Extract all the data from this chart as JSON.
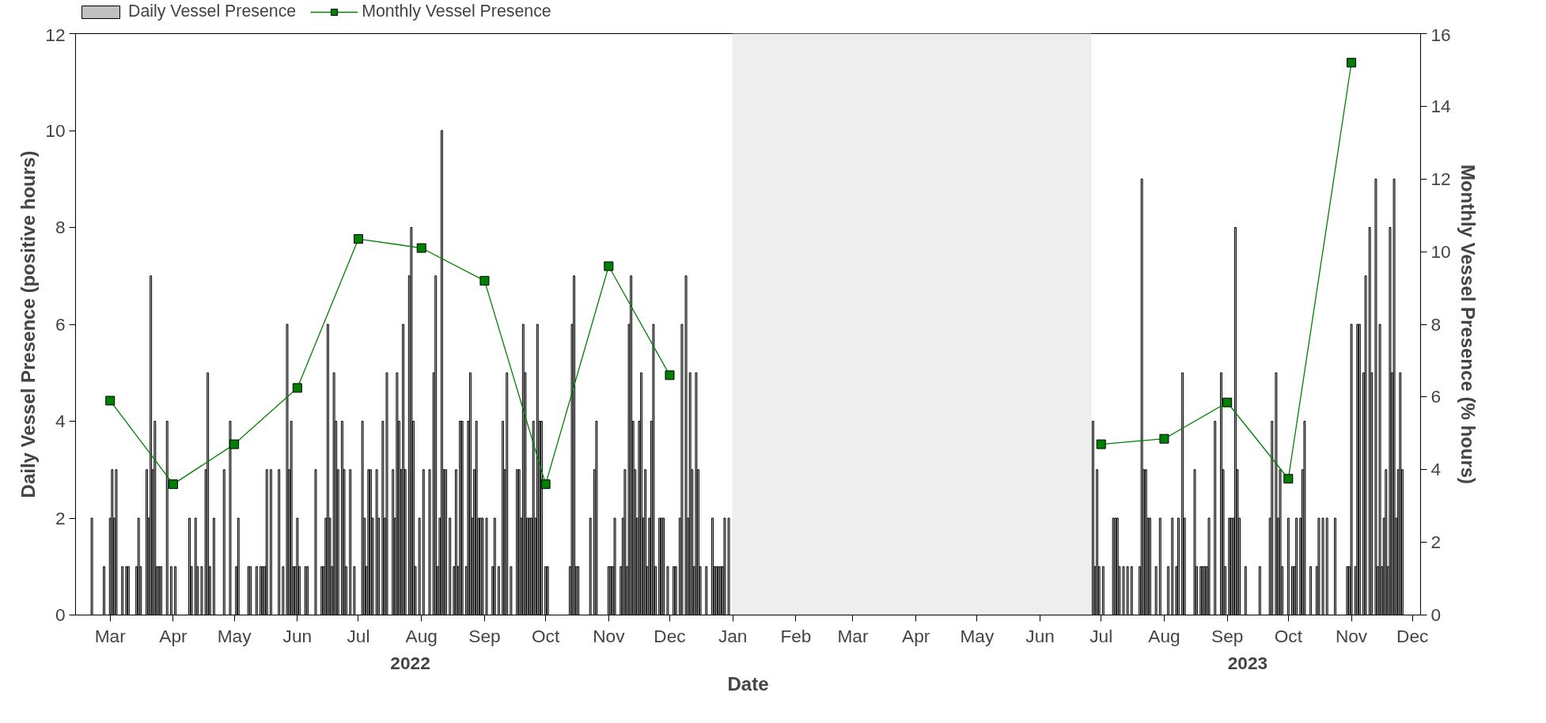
{
  "chart_data": {
    "type": "bar",
    "xlabel": "Date",
    "ylabel": "Daily Vessel Presence (positive hours)",
    "y2label": "Monthly Vessel Presence (% hours)",
    "xlim": [
      "2022-02-12",
      "2023-12-05"
    ],
    "xticks": [
      {
        "value": "2022-03-01",
        "label": "Mar"
      },
      {
        "value": "2022-04-01",
        "label": "Apr"
      },
      {
        "value": "2022-05-01",
        "label": "May"
      },
      {
        "value": "2022-06-01",
        "label": "Jun"
      },
      {
        "value": "2022-07-01",
        "label": "Jul"
      },
      {
        "value": "2022-08-01",
        "label": "Aug"
      },
      {
        "value": "2022-09-01",
        "label": "Sep"
      },
      {
        "value": "2022-10-01",
        "label": "Oct"
      },
      {
        "value": "2022-11-01",
        "label": "Nov"
      },
      {
        "value": "2022-12-01",
        "label": "Dec"
      },
      {
        "value": "2023-01-01",
        "label": "Jan"
      },
      {
        "value": "2023-02-01",
        "label": "Feb"
      },
      {
        "value": "2023-03-01",
        "label": "Mar"
      },
      {
        "value": "2023-04-01",
        "label": "Apr"
      },
      {
        "value": "2023-05-01",
        "label": "May"
      },
      {
        "value": "2023-06-01",
        "label": "Jun"
      },
      {
        "value": "2023-07-01",
        "label": "Jul"
      },
      {
        "value": "2023-08-01",
        "label": "Aug"
      },
      {
        "value": "2023-09-01",
        "label": "Sep"
      },
      {
        "value": "2023-10-01",
        "label": "Oct"
      },
      {
        "value": "2023-11-01",
        "label": "Nov"
      },
      {
        "value": "2023-12-01",
        "label": "Dec"
      }
    ],
    "ylim": [
      0,
      12
    ],
    "yticks": [
      0,
      2,
      4,
      6,
      8,
      10,
      12
    ],
    "y2lim": [
      0,
      16
    ],
    "y2ticks": [
      0,
      2,
      4,
      6,
      8,
      10,
      12,
      14,
      16
    ],
    "grid": false,
    "legend": "top left",
    "bands": [
      {
        "axis": "x",
        "from": "2023-01-01",
        "to": "2023-06-26",
        "color": "#eeeeee"
      }
    ],
    "annotations": [
      "2022",
      "2023"
    ],
    "series": [
      {
        "name": "Daily Vessel Presence",
        "color": "#c0c0c0",
        "x": [
          "2022-02-20",
          "2022-02-26",
          "2022-03-01",
          "2022-03-02",
          "2022-03-03",
          "2022-03-04",
          "2022-03-07",
          "2022-03-09",
          "2022-03-10",
          "2022-03-14",
          "2022-03-15",
          "2022-03-16",
          "2022-03-19",
          "2022-03-20",
          "2022-03-21",
          "2022-03-22",
          "2022-03-23",
          "2022-03-24",
          "2022-03-25",
          "2022-03-26",
          "2022-03-29",
          "2022-03-31",
          "2022-04-02",
          "2022-04-09",
          "2022-04-10",
          "2022-04-12",
          "2022-04-13",
          "2022-04-15",
          "2022-04-17",
          "2022-04-18",
          "2022-04-19",
          "2022-04-21",
          "2022-04-26",
          "2022-04-29",
          "2022-05-02",
          "2022-05-03",
          "2022-05-08",
          "2022-05-09",
          "2022-05-12",
          "2022-05-14",
          "2022-05-15",
          "2022-05-16",
          "2022-05-17",
          "2022-05-19",
          "2022-05-23",
          "2022-05-25",
          "2022-05-27",
          "2022-05-28",
          "2022-05-29",
          "2022-05-30",
          "2022-05-31",
          "2022-06-01",
          "2022-06-02",
          "2022-06-05",
          "2022-06-06",
          "2022-06-10",
          "2022-06-13",
          "2022-06-14",
          "2022-06-15",
          "2022-06-16",
          "2022-06-17",
          "2022-06-18",
          "2022-06-19",
          "2022-06-20",
          "2022-06-21",
          "2022-06-23",
          "2022-06-24",
          "2022-06-25",
          "2022-06-27",
          "2022-06-29",
          "2022-07-03",
          "2022-07-04",
          "2022-07-05",
          "2022-07-06",
          "2022-07-07",
          "2022-07-08",
          "2022-07-10",
          "2022-07-11",
          "2022-07-13",
          "2022-07-14",
          "2022-07-15",
          "2022-07-18",
          "2022-07-19",
          "2022-07-20",
          "2022-07-21",
          "2022-07-22",
          "2022-07-23",
          "2022-07-24",
          "2022-07-26",
          "2022-07-27",
          "2022-07-28",
          "2022-07-29",
          "2022-07-31",
          "2022-08-02",
          "2022-08-05",
          "2022-08-07",
          "2022-08-08",
          "2022-08-09",
          "2022-08-10",
          "2022-08-11",
          "2022-08-12",
          "2022-08-13",
          "2022-08-15",
          "2022-08-17",
          "2022-08-18",
          "2022-08-19",
          "2022-08-20",
          "2022-08-21",
          "2022-08-23",
          "2022-08-24",
          "2022-08-25",
          "2022-08-26",
          "2022-08-27",
          "2022-08-28",
          "2022-08-29",
          "2022-08-30",
          "2022-08-31",
          "2022-09-02",
          "2022-09-05",
          "2022-09-06",
          "2022-09-08",
          "2022-09-10",
          "2022-09-11",
          "2022-09-12",
          "2022-09-14",
          "2022-09-17",
          "2022-09-18",
          "2022-09-19",
          "2022-09-20",
          "2022-09-21",
          "2022-09-22",
          "2022-09-23",
          "2022-09-24",
          "2022-09-25",
          "2022-09-26",
          "2022-09-27",
          "2022-09-28",
          "2022-09-29",
          "2022-10-01",
          "2022-10-02",
          "2022-10-13",
          "2022-10-14",
          "2022-10-15",
          "2022-10-16",
          "2022-10-17",
          "2022-10-23",
          "2022-10-25",
          "2022-10-26",
          "2022-11-01",
          "2022-11-02",
          "2022-11-03",
          "2022-11-04",
          "2022-11-07",
          "2022-11-08",
          "2022-11-09",
          "2022-11-10",
          "2022-11-11",
          "2022-11-12",
          "2022-11-13",
          "2022-11-14",
          "2022-11-15",
          "2022-11-16",
          "2022-11-17",
          "2022-11-18",
          "2022-11-19",
          "2022-11-20",
          "2022-11-21",
          "2022-11-22",
          "2022-11-23",
          "2022-11-24",
          "2022-11-26",
          "2022-11-27",
          "2022-11-28",
          "2022-11-30",
          "2022-12-03",
          "2022-12-04",
          "2022-12-06",
          "2022-12-07",
          "2022-12-09",
          "2022-12-10",
          "2022-12-11",
          "2022-12-12",
          "2022-12-13",
          "2022-12-14",
          "2022-12-15",
          "2022-12-16",
          "2022-12-19",
          "2022-12-22",
          "2022-12-23",
          "2022-12-24",
          "2022-12-25",
          "2022-12-26",
          "2022-12-27",
          "2022-12-28",
          "2022-12-30",
          "2023-06-27",
          "2023-06-28",
          "2023-06-29",
          "2023-06-30",
          "2023-07-02",
          "2023-07-07",
          "2023-07-08",
          "2023-07-09",
          "2023-07-10",
          "2023-07-12",
          "2023-07-14",
          "2023-07-16",
          "2023-07-20",
          "2023-07-21",
          "2023-07-22",
          "2023-07-23",
          "2023-07-24",
          "2023-07-25",
          "2023-07-28",
          "2023-07-30",
          "2023-08-03",
          "2023-08-05",
          "2023-08-07",
          "2023-08-08",
          "2023-08-10",
          "2023-08-11",
          "2023-08-16",
          "2023-08-17",
          "2023-08-19",
          "2023-08-20",
          "2023-08-21",
          "2023-08-22",
          "2023-08-23",
          "2023-08-26",
          "2023-08-29",
          "2023-08-30",
          "2023-08-31",
          "2023-09-02",
          "2023-09-03",
          "2023-09-04",
          "2023-09-05",
          "2023-09-06",
          "2023-09-07",
          "2023-09-10",
          "2023-09-17",
          "2023-09-22",
          "2023-09-23",
          "2023-09-25",
          "2023-09-26",
          "2023-09-27",
          "2023-09-28",
          "2023-10-01",
          "2023-10-03",
          "2023-10-04",
          "2023-10-05",
          "2023-10-07",
          "2023-10-08",
          "2023-10-09",
          "2023-10-12",
          "2023-10-15",
          "2023-10-16",
          "2023-10-18",
          "2023-10-20",
          "2023-10-24",
          "2023-10-30",
          "2023-10-31",
          "2023-11-01",
          "2023-11-03",
          "2023-11-04",
          "2023-11-05",
          "2023-11-07",
          "2023-11-08",
          "2023-11-10",
          "2023-11-11",
          "2023-11-13",
          "2023-11-14",
          "2023-11-15",
          "2023-11-16",
          "2023-11-17",
          "2023-11-18",
          "2023-11-19",
          "2023-11-20",
          "2023-11-21",
          "2023-11-22",
          "2023-11-23",
          "2023-11-24",
          "2023-11-25",
          "2023-11-26"
        ],
        "values": [
          2,
          1,
          2,
          3,
          2,
          3,
          1,
          1,
          1,
          1,
          2,
          1,
          3,
          2,
          7,
          3,
          4,
          1,
          1,
          1,
          4,
          1,
          1,
          2,
          1,
          2,
          1,
          1,
          3,
          5,
          1,
          2,
          3,
          4,
          1,
          2,
          1,
          1,
          1,
          1,
          1,
          1,
          3,
          3,
          3,
          1,
          6,
          3,
          4,
          1,
          1,
          2,
          1,
          1,
          1,
          3,
          1,
          1,
          2,
          6,
          2,
          1,
          5,
          4,
          3,
          4,
          3,
          1,
          3,
          1,
          4,
          2,
          1,
          3,
          3,
          2,
          3,
          2,
          4,
          2,
          5,
          3,
          2,
          5,
          4,
          3,
          6,
          3,
          7,
          8,
          4,
          1,
          2,
          3,
          3,
          5,
          7,
          1,
          2,
          10,
          3,
          3,
          2,
          1,
          3,
          1,
          4,
          4,
          1,
          4,
          5,
          2,
          3,
          4,
          2,
          2,
          2,
          2,
          1,
          2,
          1,
          4,
          3,
          5,
          1,
          3,
          3,
          2,
          6,
          5,
          2,
          2,
          2,
          4,
          2,
          6,
          4,
          4,
          1,
          1,
          1,
          6,
          7,
          1,
          1,
          2,
          3,
          4,
          1,
          1,
          1,
          2,
          1,
          2,
          3,
          1,
          6,
          7,
          4,
          3,
          2,
          4,
          5,
          2,
          3,
          1,
          2,
          4,
          6,
          1,
          2,
          2,
          2,
          1,
          1,
          1,
          2,
          6,
          7,
          2,
          5,
          3,
          1,
          5,
          3,
          1,
          1,
          2,
          1,
          1,
          1,
          1,
          1,
          2,
          2,
          4,
          1,
          3,
          1,
          1,
          2,
          2,
          2,
          1,
          1,
          1,
          1,
          1,
          9,
          3,
          3,
          2,
          2,
          1,
          2,
          1,
          2,
          1,
          2,
          5,
          2,
          3,
          1,
          1,
          1,
          1,
          1,
          2,
          4,
          5,
          3,
          1,
          2,
          2,
          2,
          8,
          3,
          2,
          1,
          1,
          2,
          4,
          5,
          2,
          3,
          1,
          2,
          1,
          1,
          2,
          2,
          3,
          4,
          1,
          1,
          2,
          2,
          2,
          2,
          1,
          1,
          6,
          1,
          6,
          6,
          5,
          7,
          8,
          5,
          9,
          1,
          6,
          1,
          2,
          3,
          1,
          8,
          5,
          9,
          2,
          3,
          5,
          3
        ]
      },
      {
        "name": "Monthly Vessel Presence",
        "type": "line",
        "axis": "y2",
        "color": "#008000",
        "marker": "square",
        "line_style": "solid",
        "x": [
          "2022-03-01",
          "2022-04-01",
          "2022-05-01",
          "2022-06-01",
          "2022-07-01",
          "2022-08-01",
          "2022-09-01",
          "2022-10-01",
          "2022-11-01",
          "2022-12-01",
          "2023-04-01",
          "2023-07-01",
          "2023-08-01",
          "2023-09-01",
          "2023-10-01",
          "2023-11-01"
        ],
        "values": [
          5.9,
          3.6,
          4.7,
          6.25,
          10.35,
          10.1,
          9.2,
          3.6,
          9.6,
          6.6,
          null,
          4.7,
          4.85,
          5.85,
          3.75,
          15.2
        ]
      }
    ]
  }
}
